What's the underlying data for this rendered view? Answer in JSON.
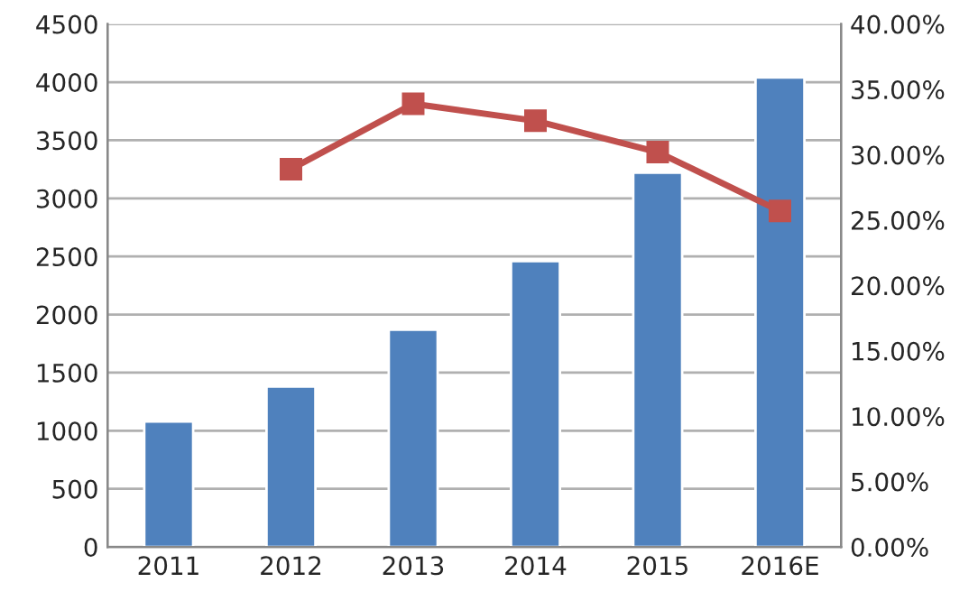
{
  "chart_data": {
    "type": "bar",
    "categories": [
      "2011",
      "2012",
      "2013",
      "2014",
      "2015",
      "2016E"
    ],
    "series": [
      {
        "color": "#4f81bd",
        "values": [
          1080,
          1380,
          1870,
          2460,
          3220,
          4040
        ]
      },
      {
        "type": "line",
        "axis": "y2",
        "color": "#c0504d",
        "marker": "square",
        "line_style": "solid",
        "values": [
          null,
          28.9,
          33.9,
          32.6,
          30.2,
          25.7
        ]
      }
    ],
    "ylim": [
      0,
      4500
    ],
    "yticks": [
      0,
      500,
      1000,
      1500,
      2000,
      2500,
      3000,
      3500,
      4000,
      4500
    ],
    "y2lim": [
      0,
      40
    ],
    "y2ticks": [
      {
        "value": 0,
        "label": "0.00%"
      },
      {
        "value": 5,
        "label": "5.00%"
      },
      {
        "value": 10,
        "label": "10.00%"
      },
      {
        "value": 15,
        "label": "15.00%"
      },
      {
        "value": 20,
        "label": "20.00%"
      },
      {
        "value": 25,
        "label": "25.00%"
      },
      {
        "value": 30,
        "label": "30.00%"
      },
      {
        "value": 35,
        "label": "35.00%"
      },
      {
        "value": 40,
        "label": "40.00%"
      }
    ],
    "grid": "y",
    "legend": false
  }
}
